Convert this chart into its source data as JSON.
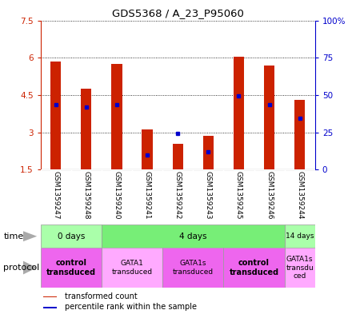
{
  "title": "GDS5368 / A_23_P95060",
  "samples": [
    "GSM1359247",
    "GSM1359248",
    "GSM1359240",
    "GSM1359241",
    "GSM1359242",
    "GSM1359243",
    "GSM1359245",
    "GSM1359246",
    "GSM1359244"
  ],
  "bar_bottom": 1.5,
  "transformed_counts": [
    5.85,
    4.75,
    5.75,
    3.1,
    2.55,
    2.85,
    6.05,
    5.7,
    4.3
  ],
  "percentile_values": [
    4.1,
    4.0,
    4.1,
    2.1,
    2.95,
    2.2,
    4.45,
    4.1,
    3.55
  ],
  "ylim": [
    1.5,
    7.5
  ],
  "y_ticks_left": [
    1.5,
    3.0,
    4.5,
    6.0,
    7.5
  ],
  "y_tick_labels_left": [
    "1.5",
    "3",
    "4.5",
    "6",
    "7.5"
  ],
  "y_ticks_right_pct": [
    0,
    25,
    50,
    75,
    100
  ],
  "y_tick_labels_right": [
    "0",
    "25",
    "50",
    "75",
    "100%"
  ],
  "bar_color": "#cc2200",
  "percentile_color": "#0000cc",
  "bar_width": 0.35,
  "left_axis_color": "#cc2200",
  "right_axis_color": "#0000cc",
  "time_groups": [
    {
      "label": "0 days",
      "start": 0,
      "end": 2,
      "color": "#aaffaa"
    },
    {
      "label": "4 days",
      "start": 2,
      "end": 8,
      "color": "#77ee77"
    },
    {
      "label": "14 days",
      "start": 8,
      "end": 9,
      "color": "#aaffaa"
    }
  ],
  "protocol_groups": [
    {
      "label": "control\ntransduced",
      "start": 0,
      "end": 2,
      "color": "#ee66ee",
      "bold": true
    },
    {
      "label": "GATA1\ntransduced",
      "start": 2,
      "end": 4,
      "color": "#ffaaff",
      "bold": false
    },
    {
      "label": "GATA1s\ntransduced",
      "start": 4,
      "end": 6,
      "color": "#ee66ee",
      "bold": false
    },
    {
      "label": "control\ntransduced",
      "start": 6,
      "end": 8,
      "color": "#ee66ee",
      "bold": true
    },
    {
      "label": "GATA1s\ntransdu\nced",
      "start": 8,
      "end": 9,
      "color": "#ffaaff",
      "bold": false
    }
  ],
  "sample_bg_color": "#cccccc",
  "legend_items": [
    {
      "color": "#cc2200",
      "label": "transformed count"
    },
    {
      "color": "#0000cc",
      "label": "percentile rank within the sample"
    }
  ]
}
